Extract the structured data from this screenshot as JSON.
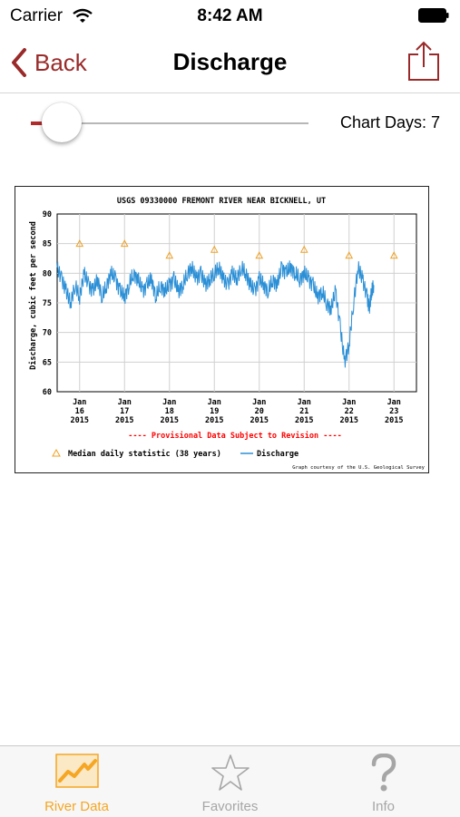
{
  "status_bar": {
    "carrier": "Carrier",
    "time": "8:42 AM"
  },
  "nav": {
    "back_label": "Back",
    "title": "Discharge"
  },
  "slider": {
    "label": "Chart Days: 7",
    "value_fraction": 0.04
  },
  "colors": {
    "accent": "#9a2a2a",
    "tab_active": "#f5a623",
    "tab_inactive": "#a6a6a6",
    "series": "#2b8fd6",
    "median": "#f0a020",
    "provisional": "#ff0000"
  },
  "chart_data": {
    "type": "line",
    "title": "USGS 09330000 FREMONT RIVER NEAR BICKNELL, UT",
    "ylabel": "Discharge, cubic feet per second",
    "ylim": [
      60,
      90
    ],
    "yticks": [
      "90",
      "85",
      "80",
      "75",
      "70",
      "65",
      "60"
    ],
    "xlim": [
      15.5,
      23.5
    ],
    "xticks": [
      {
        "month": "Jan",
        "day": "16",
        "year": "2015"
      },
      {
        "month": "Jan",
        "day": "17",
        "year": "2015"
      },
      {
        "month": "Jan",
        "day": "18",
        "year": "2015"
      },
      {
        "month": "Jan",
        "day": "19",
        "year": "2015"
      },
      {
        "month": "Jan",
        "day": "20",
        "year": "2015"
      },
      {
        "month": "Jan",
        "day": "21",
        "year": "2015"
      },
      {
        "month": "Jan",
        "day": "22",
        "year": "2015"
      },
      {
        "month": "Jan",
        "day": "23",
        "year": "2015"
      }
    ],
    "annotation": "---- Provisional Data Subject to Revision ----",
    "legend": [
      {
        "marker": "triangle",
        "label": "Median daily statistic (38 years)"
      },
      {
        "marker": "line",
        "label": "Discharge"
      }
    ],
    "credit": "Graph courtesy of the U.S. Geological Survey",
    "median": {
      "x": [
        16,
        17,
        18,
        19,
        20,
        21,
        22,
        23
      ],
      "y": [
        85,
        85,
        83,
        84,
        83,
        84,
        83,
        83
      ]
    },
    "discharge": {
      "x": [
        15.5,
        15.6,
        15.7,
        15.8,
        15.9,
        16.0,
        16.1,
        16.2,
        16.3,
        16.4,
        16.5,
        16.6,
        16.7,
        16.8,
        16.9,
        17.0,
        17.1,
        17.2,
        17.3,
        17.4,
        17.5,
        17.6,
        17.7,
        17.8,
        17.9,
        18.0,
        18.1,
        18.2,
        18.3,
        18.4,
        18.5,
        18.6,
        18.7,
        18.8,
        18.9,
        19.0,
        19.1,
        19.2,
        19.3,
        19.4,
        19.5,
        19.6,
        19.7,
        19.8,
        19.9,
        20.0,
        20.1,
        20.2,
        20.3,
        20.4,
        20.5,
        20.6,
        20.7,
        20.8,
        20.9,
        21.0,
        21.1,
        21.2,
        21.3,
        21.4,
        21.5,
        21.6,
        21.7,
        21.8,
        21.9,
        22.0,
        22.1,
        22.2,
        22.3,
        22.4,
        22.45,
        22.5,
        22.55
      ],
      "y": [
        81,
        79,
        77,
        75,
        78,
        76,
        80,
        78,
        77,
        79,
        76,
        78,
        80,
        79,
        77,
        76,
        78,
        80,
        79,
        77,
        78,
        79,
        76,
        78,
        77,
        78,
        79,
        77,
        78,
        80,
        81,
        79,
        80,
        78,
        79,
        80,
        81,
        79,
        78,
        80,
        79,
        81,
        80,
        78,
        77,
        79,
        78,
        77,
        79,
        78,
        81,
        80,
        81,
        80,
        79,
        80,
        79,
        78,
        76,
        77,
        75,
        74,
        77,
        71,
        65,
        68,
        75,
        81,
        79,
        76,
        74,
        77,
        78
      ]
    }
  },
  "tabs": [
    {
      "label": "River Data",
      "icon": "chart-icon",
      "active": true
    },
    {
      "label": "Favorites",
      "icon": "star-icon",
      "active": false
    },
    {
      "label": "Info",
      "icon": "question-mark-icon",
      "active": false
    }
  ]
}
